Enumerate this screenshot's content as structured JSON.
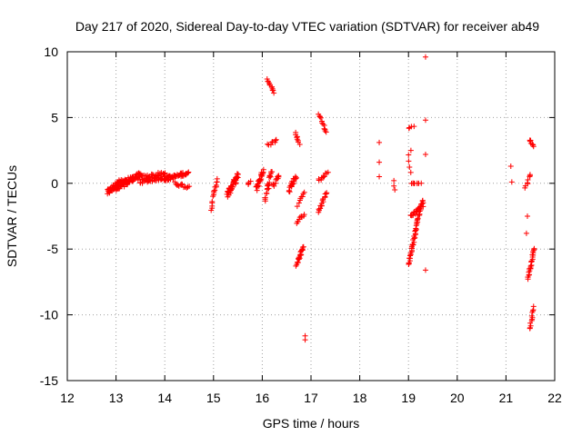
{
  "chart_data": {
    "type": "scatter",
    "title": "Day 217 of 2020, Sidereal Day-to-day VTEC variation (SDTVAR) for receiver ab49",
    "xlabel": "GPS time / hours",
    "ylabel": "SDTVAR / TECUs",
    "xlim": [
      12,
      22
    ],
    "ylim": [
      -15,
      10
    ],
    "xticks": [
      12,
      13,
      14,
      15,
      16,
      17,
      18,
      19,
      20,
      21,
      22
    ],
    "yticks": [
      -15,
      -10,
      -5,
      0,
      5,
      10
    ],
    "xtick_labels": [
      "12",
      "13",
      "14",
      "15",
      "16",
      "17",
      "18",
      "19",
      "20",
      "21",
      "22"
    ],
    "ytick_labels": [
      "-15",
      "-10",
      "-5",
      "0",
      "5",
      "10"
    ],
    "grid": true,
    "marker": "+",
    "color": "#ff0000",
    "segments": [
      {
        "x0": 12.82,
        "x1": 13.08,
        "y0": -0.7,
        "y1": 0.1,
        "n": 44,
        "spread": 0.45
      },
      {
        "x0": 13.0,
        "x1": 13.5,
        "y0": -0.5,
        "y1": 0.7,
        "n": 50,
        "spread": 0.35
      },
      {
        "x0": 13.1,
        "x1": 14.0,
        "y0": 0.2,
        "y1": 0.7,
        "n": 60,
        "spread": 0.35
      },
      {
        "x0": 13.5,
        "x1": 14.1,
        "y0": 0.1,
        "y1": 0.5,
        "n": 40,
        "spread": 0.25
      },
      {
        "x0": 14.0,
        "x1": 14.48,
        "y0": 0.3,
        "y1": 0.8,
        "n": 40,
        "spread": 0.3
      },
      {
        "x0": 14.2,
        "x1": 14.5,
        "y0": 0.0,
        "y1": -0.3,
        "n": 14,
        "spread": 0.25
      },
      {
        "x0": 14.95,
        "x1": 15.08,
        "y0": -1.9,
        "y1": 0.4,
        "n": 16,
        "spread": 0.3
      },
      {
        "x0": 15.28,
        "x1": 15.5,
        "y0": -0.9,
        "y1": 0.6,
        "n": 46,
        "spread": 0.5
      },
      {
        "x0": 15.7,
        "x1": 15.75,
        "y0": -0.1,
        "y1": 0.1,
        "n": 4,
        "spread": 0.15
      },
      {
        "x0": 15.88,
        "x1": 16.02,
        "y0": -0.4,
        "y1": 1.0,
        "n": 26,
        "spread": 0.45
      },
      {
        "x0": 16.05,
        "x1": 16.2,
        "y0": -1.2,
        "y1": 1.0,
        "n": 20,
        "spread": 0.5
      },
      {
        "x0": 16.1,
        "x1": 16.25,
        "y0": 7.9,
        "y1": 6.9,
        "n": 12,
        "spread": 0.15
      },
      {
        "x0": 16.12,
        "x1": 16.3,
        "y0": 2.9,
        "y1": 3.3,
        "n": 8,
        "spread": 0.2
      },
      {
        "x0": 16.22,
        "x1": 16.35,
        "y0": -0.2,
        "y1": 0.7,
        "n": 10,
        "spread": 0.3
      },
      {
        "x0": 16.55,
        "x1": 16.7,
        "y0": -0.5,
        "y1": 0.6,
        "n": 20,
        "spread": 0.4
      },
      {
        "x0": 16.68,
        "x1": 16.76,
        "y0": 3.8,
        "y1": 3.0,
        "n": 8,
        "spread": 0.15
      },
      {
        "x0": 16.7,
        "x1": 16.85,
        "y0": -6.2,
        "y1": -4.8,
        "n": 22,
        "spread": 0.2
      },
      {
        "x0": 16.7,
        "x1": 16.85,
        "y0": -3.0,
        "y1": -2.4,
        "n": 8,
        "spread": 0.2
      },
      {
        "x0": 16.72,
        "x1": 16.86,
        "y0": -1.7,
        "y1": -0.6,
        "n": 8,
        "spread": 0.2
      },
      {
        "x0": 17.15,
        "x1": 17.32,
        "y0": 5.3,
        "y1": 3.8,
        "n": 12,
        "spread": 0.2
      },
      {
        "x0": 17.15,
        "x1": 17.35,
        "y0": 0.2,
        "y1": 0.8,
        "n": 10,
        "spread": 0.2
      },
      {
        "x0": 17.15,
        "x1": 17.32,
        "y0": -2.2,
        "y1": -0.7,
        "n": 16,
        "spread": 0.25
      },
      {
        "x0": 19.0,
        "x1": 19.28,
        "y0": -6.2,
        "y1": -1.3,
        "n": 46,
        "spread": 0.15
      },
      {
        "x0": 19.05,
        "x1": 19.3,
        "y0": -2.5,
        "y1": -1.6,
        "n": 22,
        "spread": 0.3
      },
      {
        "x0": 19.05,
        "x1": 19.25,
        "y0": 0.0,
        "y1": 0.0,
        "n": 8,
        "spread": 0.05
      },
      {
        "x0": 19.0,
        "x1": 19.1,
        "y0": 4.2,
        "y1": 4.3,
        "n": 4,
        "spread": 0.1
      },
      {
        "x0": 19.0,
        "x1": 19.05,
        "y0": 2.2,
        "y1": 0.8,
        "n": 4,
        "spread": 0.1
      },
      {
        "x0": 21.4,
        "x1": 21.5,
        "y0": -0.4,
        "y1": 0.8,
        "n": 8,
        "spread": 0.3
      },
      {
        "x0": 21.45,
        "x1": 21.58,
        "y0": -7.3,
        "y1": -4.9,
        "n": 24,
        "spread": 0.15
      },
      {
        "x0": 21.48,
        "x1": 21.58,
        "y0": -11.1,
        "y1": -9.4,
        "n": 12,
        "spread": 0.15
      },
      {
        "x0": 21.48,
        "x1": 21.58,
        "y0": 3.3,
        "y1": 2.8,
        "n": 8,
        "spread": 0.1
      }
    ],
    "points": [
      [
        16.88,
        -11.6
      ],
      [
        16.88,
        -11.9
      ],
      [
        16.85,
        -2.5
      ],
      [
        18.4,
        3.1
      ],
      [
        18.4,
        1.6
      ],
      [
        18.4,
        0.5
      ],
      [
        18.7,
        0.2
      ],
      [
        18.7,
        -0.2
      ],
      [
        18.72,
        -0.5
      ],
      [
        19.05,
        2.5
      ],
      [
        19.08,
        -4.7
      ],
      [
        19.35,
        9.6
      ],
      [
        19.35,
        4.8
      ],
      [
        19.35,
        2.2
      ],
      [
        19.35,
        -6.6
      ],
      [
        21.1,
        1.3
      ],
      [
        21.12,
        0.1
      ],
      [
        21.42,
        -3.8
      ],
      [
        21.44,
        -2.5
      ]
    ]
  }
}
